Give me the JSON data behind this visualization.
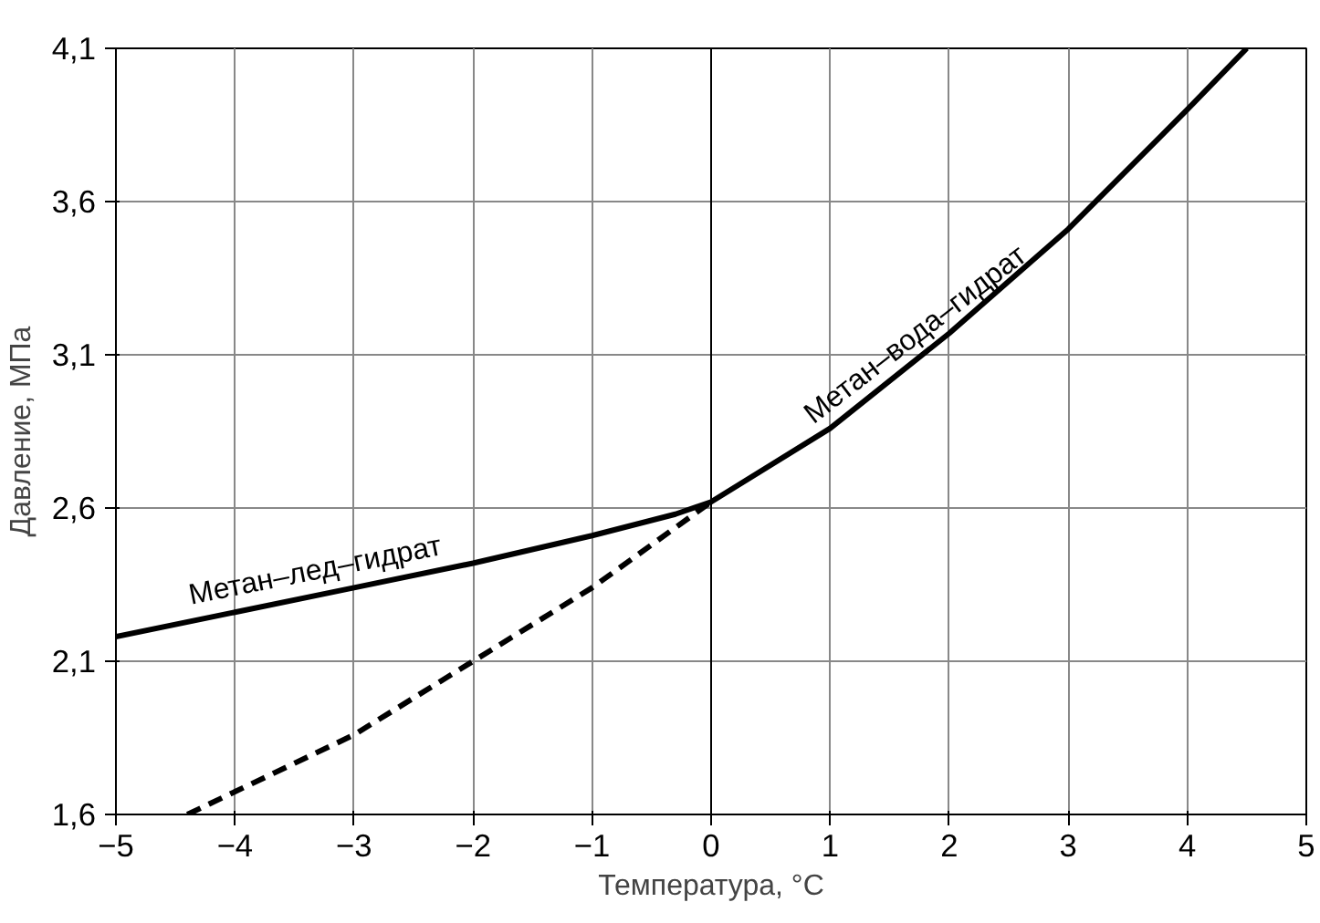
{
  "chart_data": {
    "type": "line",
    "xlabel": "Температура, °C",
    "ylabel": "Давление, МПа",
    "xlim": [
      -5,
      5
    ],
    "ylim": [
      1.6,
      4.1
    ],
    "xticks": [
      -5,
      -4,
      -3,
      -2,
      -1,
      0,
      1,
      2,
      3,
      4,
      5
    ],
    "yticks": [
      {
        "value": 1.6,
        "label": "1,6"
      },
      {
        "value": 2.1,
        "label": "2,1"
      },
      {
        "value": 2.6,
        "label": "2,6"
      },
      {
        "value": 3.1,
        "label": "3,1"
      },
      {
        "value": 3.6,
        "label": "3,6"
      },
      {
        "value": 4.1,
        "label": "4,1"
      }
    ],
    "grid": true,
    "annotations": [
      {
        "text": "Метан–лед–гидрат",
        "x": -3.3,
        "y": 2.32
      },
      {
        "text": "Метан–вода–гидрат",
        "x": 1.8,
        "y": 3.1
      }
    ],
    "series": [
      {
        "color": "#000000",
        "line_style": "solid",
        "x": [
          -5,
          -4,
          -3,
          -2,
          -1,
          -0.3,
          0,
          1,
          2,
          3,
          4,
          4.5
        ],
        "values": [
          2.18,
          2.26,
          2.34,
          2.42,
          2.51,
          2.58,
          2.62,
          2.86,
          3.17,
          3.51,
          3.9,
          4.1
        ]
      },
      {
        "color": "#000000",
        "line_style": "dashed",
        "x": [
          -4.4,
          -3,
          -2,
          -1,
          0
        ],
        "values": [
          1.6,
          1.86,
          2.1,
          2.34,
          2.62
        ]
      }
    ]
  }
}
